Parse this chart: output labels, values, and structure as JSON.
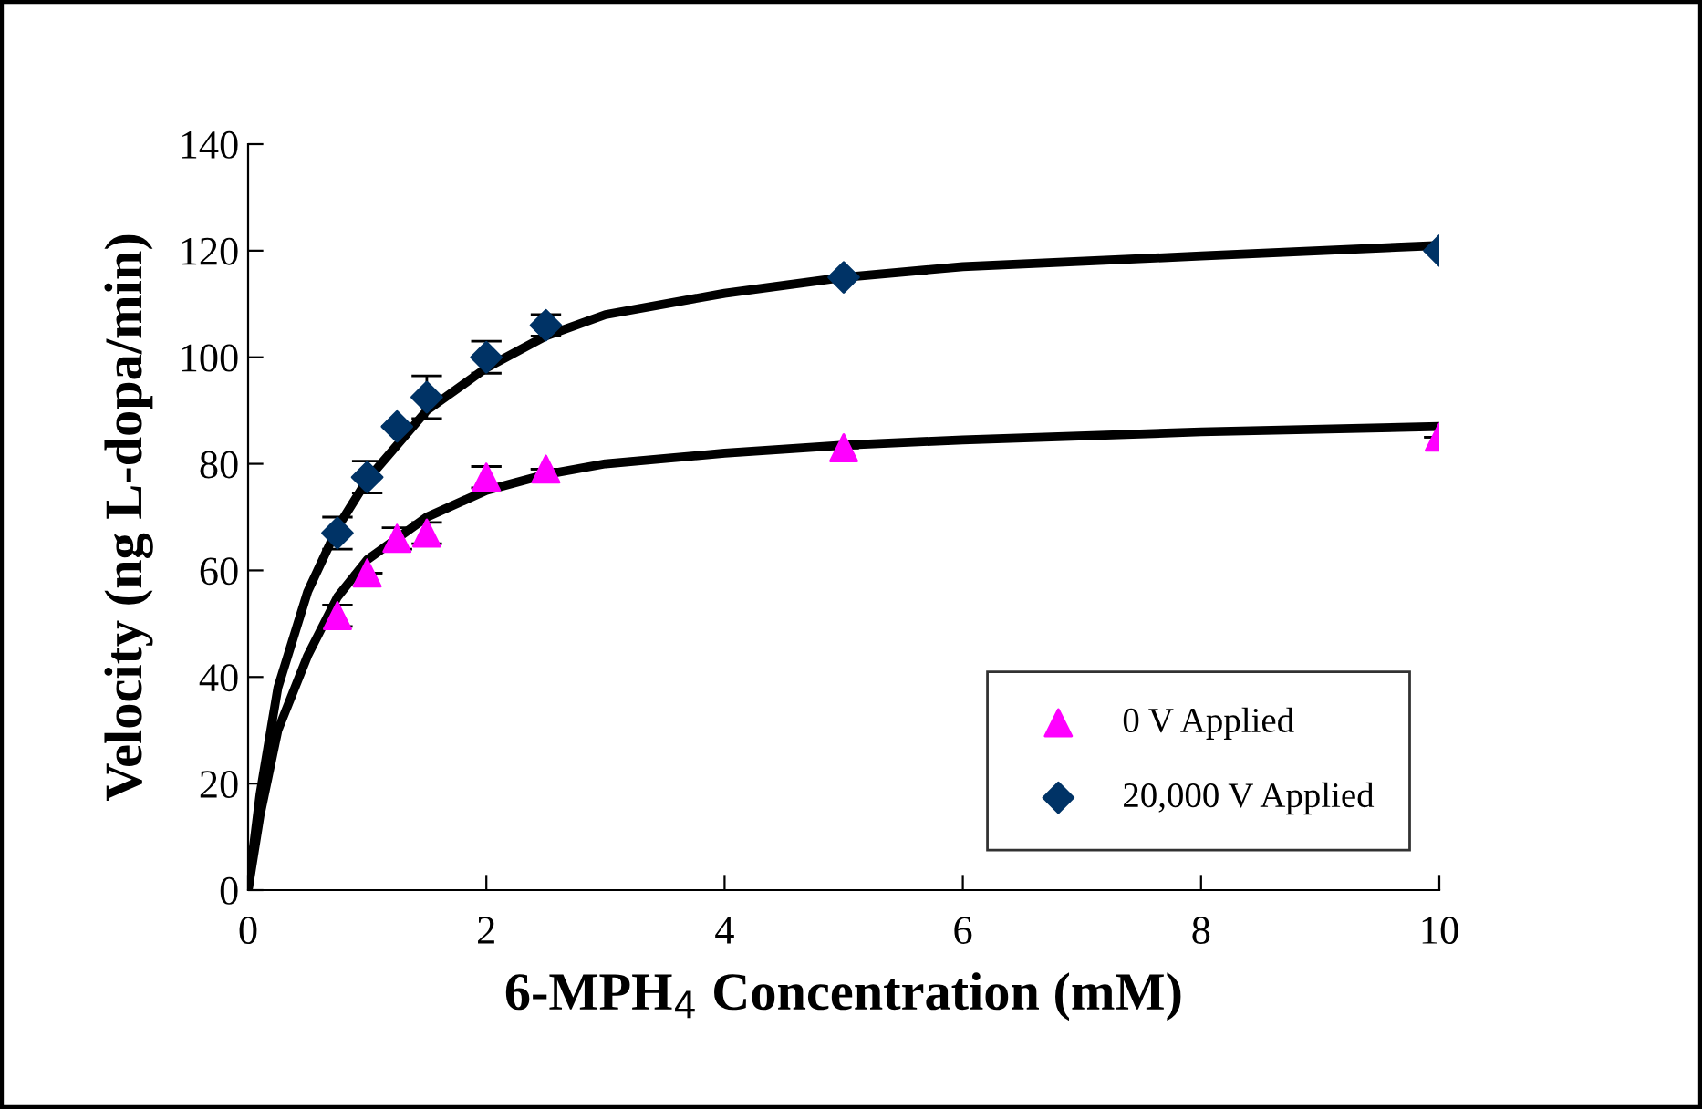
{
  "chart_data": {
    "type": "scatter",
    "xlabel": "6-MPH$_{4}$ Concentration (mM)",
    "ylabel": "Velocity (ng L-dopa/min)",
    "xlim": [
      0,
      10
    ],
    "xticks": [
      0,
      2,
      4,
      6,
      8,
      10
    ],
    "ylim": [
      0,
      140
    ],
    "yticks": [
      0,
      20,
      40,
      60,
      80,
      100,
      120,
      140
    ],
    "grid": false,
    "legend": "bottom right",
    "series": [
      {
        "type": "line",
        "color": "#000000",
        "x": [
          0,
          0.1,
          0.25,
          0.5,
          0.75,
          1,
          1.5,
          2,
          2.5,
          3,
          4,
          5,
          6,
          8,
          10
        ],
        "values": [
          0,
          14,
          30,
          44,
          55,
          62,
          70,
          75,
          78,
          80,
          82,
          83.5,
          84.5,
          86,
          87
        ]
      },
      {
        "type": "line",
        "color": "#000000",
        "x": [
          0,
          0.1,
          0.25,
          0.5,
          0.75,
          1,
          1.5,
          2,
          2.5,
          3,
          4,
          5,
          6,
          8,
          10
        ],
        "values": [
          0,
          18,
          38,
          56,
          68,
          77,
          90,
          98,
          104,
          108,
          112,
          115,
          117,
          119,
          121
        ]
      },
      {
        "name": "0 V Applied",
        "marker": "triangle",
        "color": "#ff00ff",
        "x": [
          0.75,
          1,
          1.25,
          1.5,
          2,
          2.5,
          5,
          10
        ],
        "values": [
          51.5,
          59.5,
          66,
          67,
          77.5,
          79,
          83,
          85
        ],
        "errors": [
          2,
          null,
          2,
          2,
          2,
          null,
          null,
          null
        ]
      },
      {
        "name": "20,000 V Applied",
        "marker": "diamond",
        "color": "#003366",
        "x": [
          0.75,
          1,
          1.25,
          1.5,
          2,
          2.5,
          5,
          10
        ],
        "values": [
          67,
          77.5,
          87,
          92.5,
          100,
          106,
          115,
          120
        ],
        "errors": [
          3,
          3,
          null,
          4,
          3,
          2,
          null,
          null
        ]
      }
    ]
  }
}
